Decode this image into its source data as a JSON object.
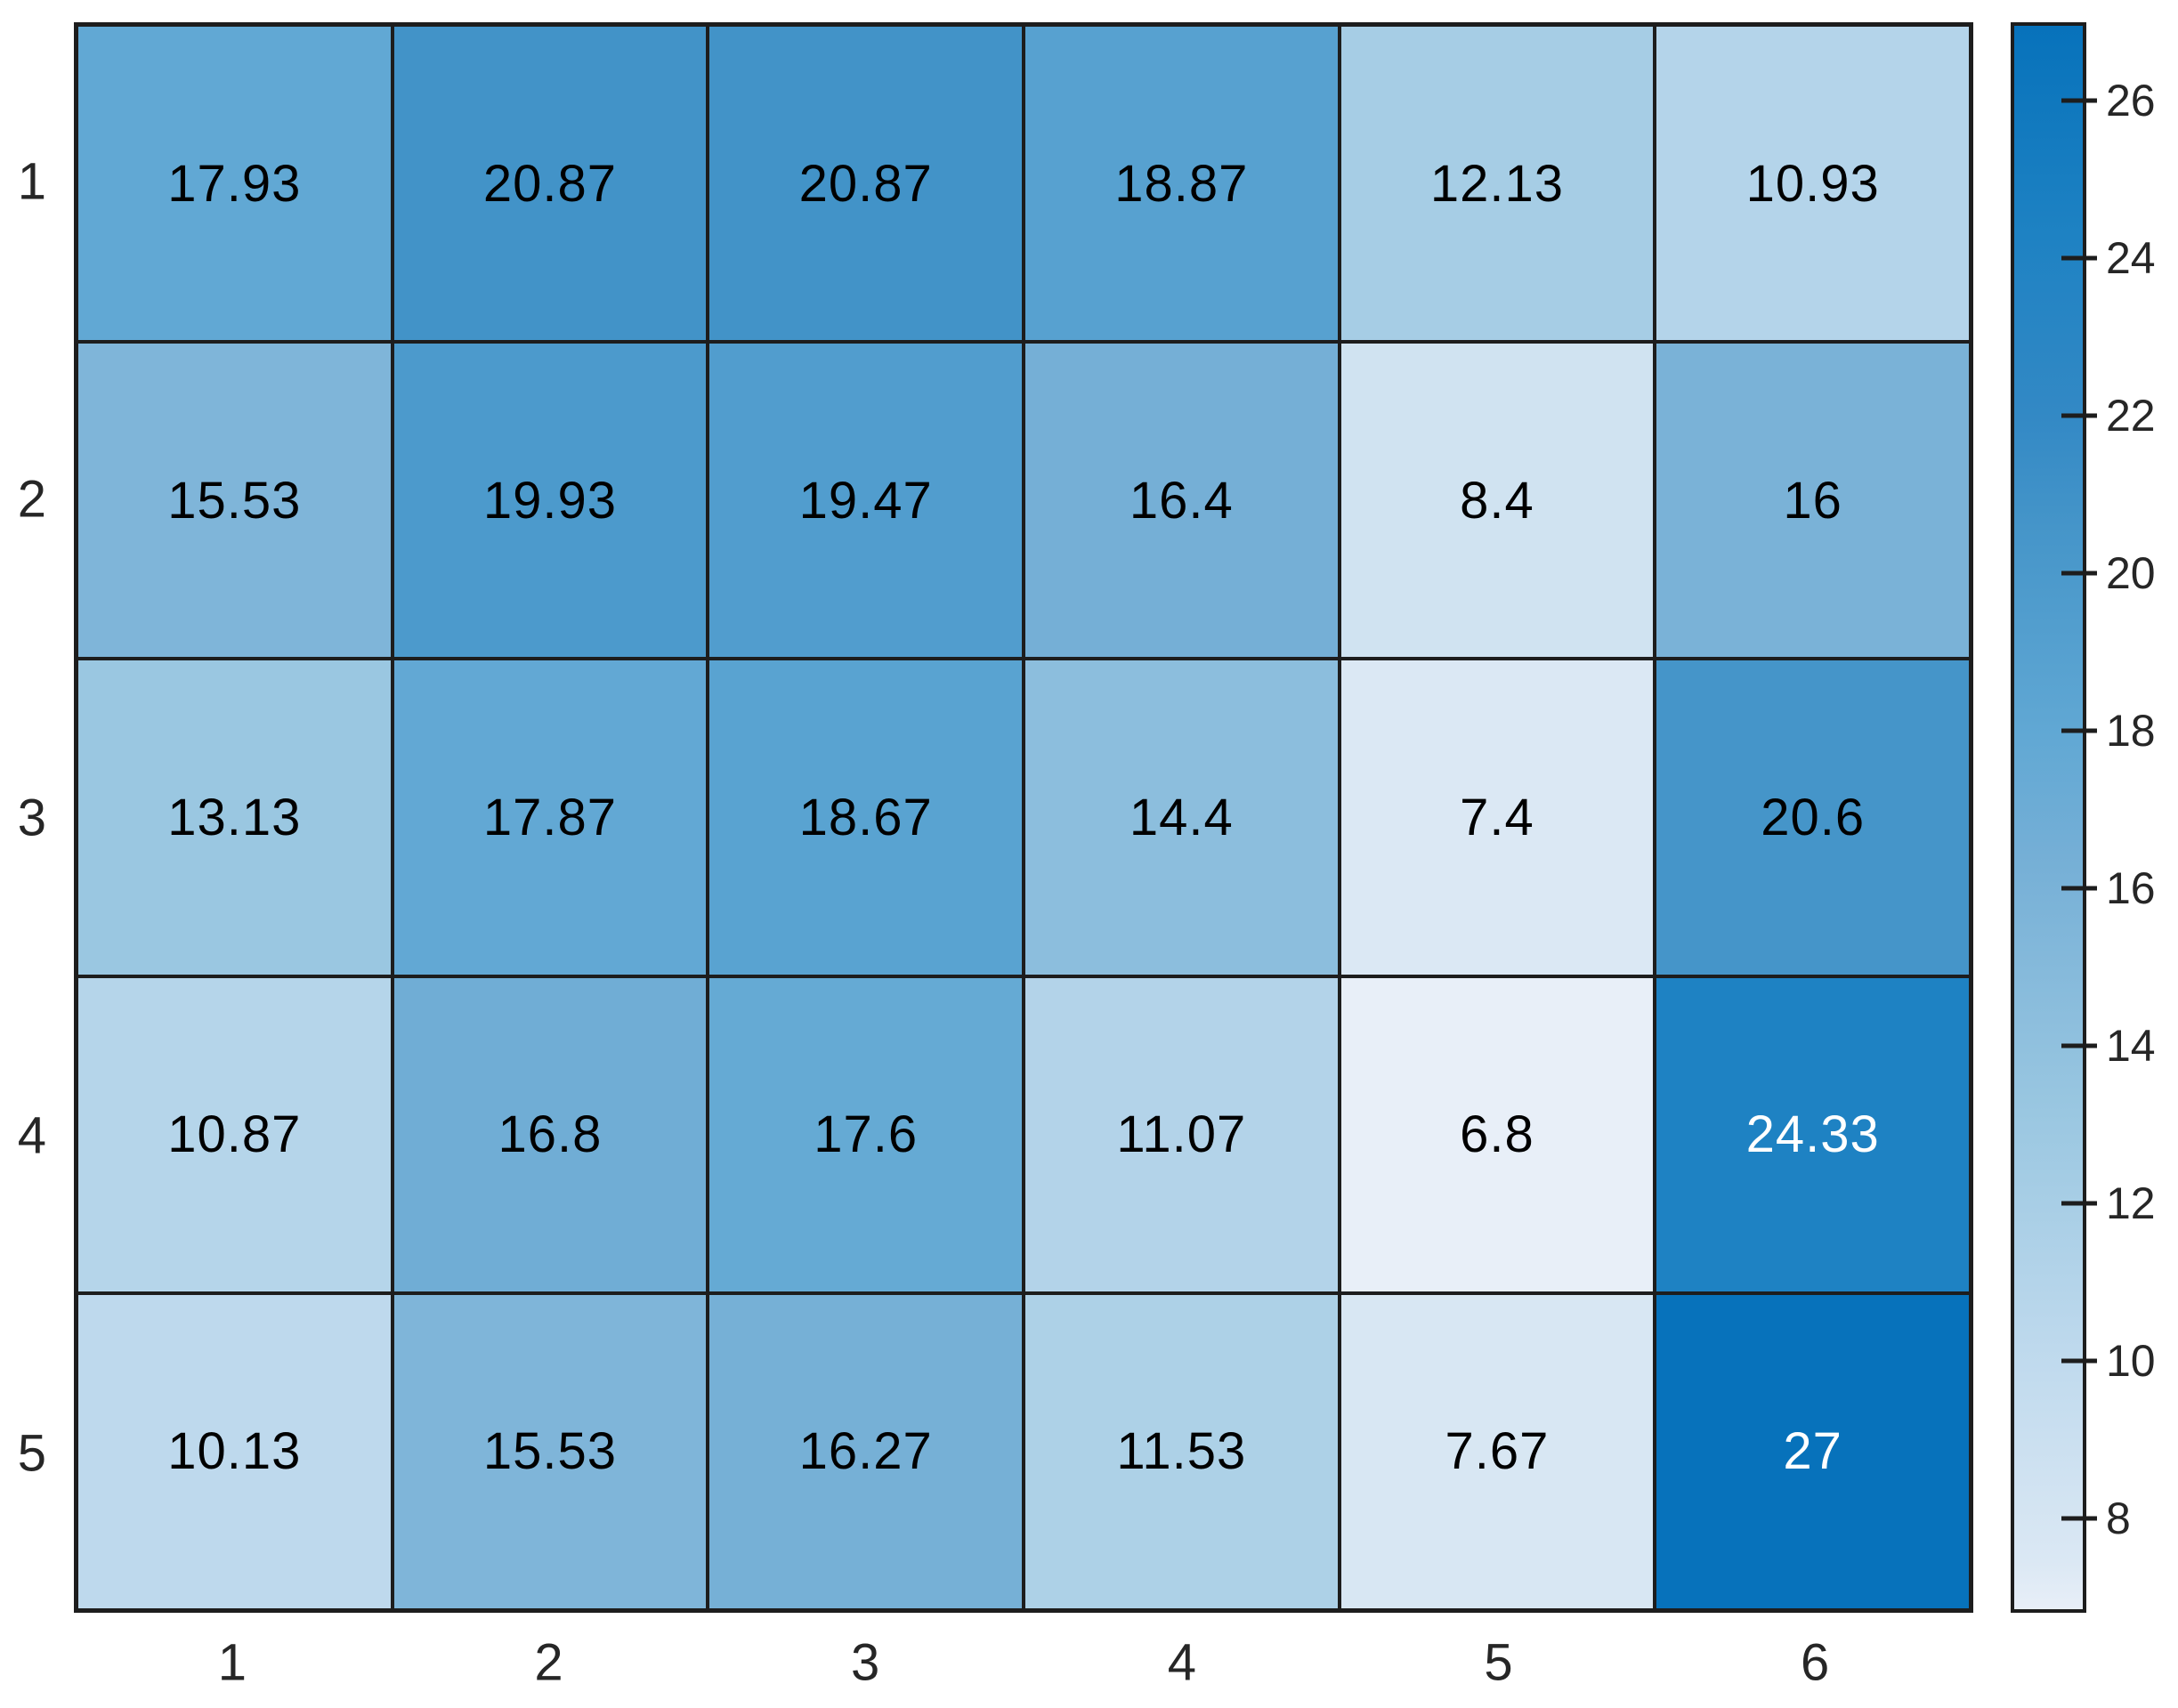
{
  "figure": {
    "background": "#ffffff",
    "grid_line_color": "#1d1d1d",
    "axis_label_color": "#262626",
    "cell_text_color_dark": "#000000",
    "cell_text_color_light": "#ffffff"
  },
  "chart_data": {
    "type": "heatmap",
    "title": "",
    "xlabel": "",
    "ylabel": "",
    "x_tick_labels": [
      "1",
      "2",
      "3",
      "4",
      "5",
      "6"
    ],
    "y_tick_labels": [
      "1",
      "2",
      "3",
      "4",
      "5"
    ],
    "values": [
      [
        17.93,
        20.87,
        20.87,
        18.87,
        12.13,
        10.93
      ],
      [
        15.53,
        19.93,
        19.47,
        16.4,
        8.4,
        16
      ],
      [
        13.13,
        17.87,
        18.67,
        14.4,
        7.4,
        20.6
      ],
      [
        10.87,
        16.8,
        17.6,
        11.07,
        6.8,
        24.33
      ],
      [
        10.13,
        15.53,
        16.27,
        11.53,
        7.67,
        27
      ]
    ],
    "display": [
      [
        "17.93",
        "20.87",
        "20.87",
        "18.87",
        "12.13",
        "10.93"
      ],
      [
        "15.53",
        "19.93",
        "19.47",
        "16.4",
        "8.4",
        "16"
      ],
      [
        "13.13",
        "17.87",
        "18.67",
        "14.4",
        "7.4",
        "20.6"
      ],
      [
        "10.87",
        "16.8",
        "17.6",
        "11.07",
        "6.8",
        "24.33"
      ],
      [
        "10.13",
        "15.53",
        "16.27",
        "11.53",
        "7.67",
        "27"
      ]
    ],
    "grid_on": true,
    "legend_position": "right",
    "color_scale": {
      "min": 6.8,
      "max": 27,
      "white_text_threshold": 22.5,
      "stops": [
        {
          "v": 6.8,
          "c": "#E8EFF8"
        },
        {
          "v": 7.4,
          "c": "#DBE8F4"
        },
        {
          "v": 10.13,
          "c": "#BED9ED"
        },
        {
          "v": 13.13,
          "c": "#9AC7E1"
        },
        {
          "v": 16.4,
          "c": "#75AFD6"
        },
        {
          "v": 17.93,
          "c": "#61A8D4"
        },
        {
          "v": 20.6,
          "c": "#4595C9"
        },
        {
          "v": 22.0,
          "c": "#3389C5"
        },
        {
          "v": 24.33,
          "c": "#1E82C3"
        },
        {
          "v": 27,
          "c": "#0772BB"
        }
      ]
    },
    "colorbar_ticks": [
      {
        "v": 26,
        "label": "26"
      },
      {
        "v": 24,
        "label": "24"
      },
      {
        "v": 22,
        "label": "22"
      },
      {
        "v": 20,
        "label": "20"
      },
      {
        "v": 18,
        "label": "18"
      },
      {
        "v": 16,
        "label": "16"
      },
      {
        "v": 14,
        "label": "14"
      },
      {
        "v": 12,
        "label": "12"
      },
      {
        "v": 10,
        "label": "10"
      },
      {
        "v": 8,
        "label": "8"
      }
    ]
  }
}
